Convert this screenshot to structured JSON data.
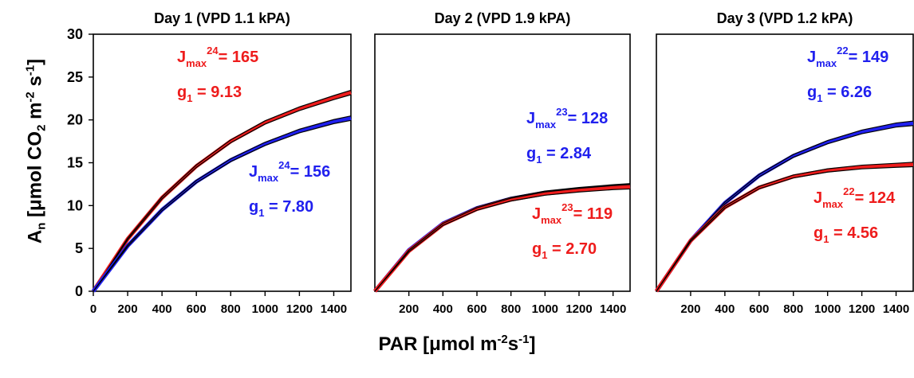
{
  "colors": {
    "red": "#ee1c1c",
    "blue": "#2020ee",
    "black": "#000000"
  },
  "axis_labels": {
    "y": {
      "a": "A",
      "a_sub": "n",
      "b": " [μmol CO",
      "co2_sub": "2",
      "c": " m",
      "m_sup": "-2",
      "d": " s",
      "s_sup": "-1",
      "e": "]"
    },
    "x": {
      "a": "PAR [μmol m",
      "m_sup": "-2",
      "b": "s",
      "s_sup": "-1",
      "c": "]"
    }
  },
  "chart_data": [
    {
      "type": "line",
      "title": "Day 1 (VPD 1.1 kPA)",
      "xlim": [
        0,
        1500
      ],
      "ylim": [
        0,
        30
      ],
      "xticks": [
        "0",
        "200",
        "400",
        "600",
        "800",
        "1000",
        "1200",
        "1400"
      ],
      "yticks": [
        "0",
        "5",
        "10",
        "15",
        "20",
        "25",
        "30"
      ],
      "series": [
        {
          "color": "red",
          "x": [
            0,
            200,
            400,
            600,
            800,
            1000,
            1200,
            1400,
            1500
          ],
          "y": [
            0,
            6.1,
            10.9,
            14.6,
            17.5,
            19.7,
            21.3,
            22.6,
            23.2
          ]
        },
        {
          "color": "blue",
          "x": [
            0,
            200,
            400,
            600,
            800,
            1000,
            1200,
            1400,
            1500
          ],
          "y": [
            0,
            5.3,
            9.5,
            12.8,
            15.3,
            17.2,
            18.7,
            19.8,
            20.2
          ]
        }
      ],
      "annotations": [
        {
          "color": "red",
          "jmax_sup": "24",
          "jmax_value": "= 165",
          "g1_value": "= 9.13"
        },
        {
          "color": "blue",
          "jmax_sup": "24",
          "jmax_value": "= 156",
          "g1_value": "= 7.80"
        }
      ]
    },
    {
      "type": "line",
      "title": "Day 2 (VPD 1.9 kPA)",
      "xlim": [
        0,
        1500
      ],
      "ylim": [
        0,
        30
      ],
      "xticks": [
        "200",
        "400",
        "600",
        "800",
        "1000",
        "1200",
        "1400"
      ],
      "yticks": [],
      "series": [
        {
          "color": "blue",
          "x": [
            0,
            200,
            400,
            600,
            800,
            1000,
            1200,
            1400,
            1500
          ],
          "y": [
            0,
            4.8,
            7.9,
            9.7,
            10.8,
            11.5,
            11.9,
            12.2,
            12.3
          ]
        },
        {
          "color": "red",
          "x": [
            0,
            200,
            400,
            600,
            800,
            1000,
            1200,
            1400,
            1500
          ],
          "y": [
            0,
            4.7,
            7.8,
            9.6,
            10.7,
            11.4,
            11.8,
            12.1,
            12.2
          ]
        }
      ],
      "annotations": [
        {
          "color": "blue",
          "jmax_sup": "23",
          "jmax_value": "= 128",
          "g1_value": "= 2.84"
        },
        {
          "color": "red",
          "jmax_sup": "23",
          "jmax_value": "= 119",
          "g1_value": "= 2.70"
        }
      ]
    },
    {
      "type": "line",
      "title": "Day 3 (VPD 1.2 kPA)",
      "xlim": [
        0,
        1500
      ],
      "ylim": [
        0,
        30
      ],
      "xticks": [
        "200",
        "400",
        "600",
        "800",
        "1000",
        "1200",
        "1400"
      ],
      "yticks": [],
      "series": [
        {
          "color": "blue",
          "x": [
            0,
            200,
            400,
            600,
            800,
            1000,
            1200,
            1400,
            1500
          ],
          "y": [
            0,
            5.9,
            10.3,
            13.5,
            15.8,
            17.4,
            18.6,
            19.4,
            19.6
          ]
        },
        {
          "color": "red",
          "x": [
            0,
            200,
            400,
            600,
            800,
            1000,
            1200,
            1400,
            1500
          ],
          "y": [
            0,
            5.9,
            9.8,
            12.1,
            13.4,
            14.1,
            14.5,
            14.7,
            14.8
          ]
        }
      ],
      "annotations": [
        {
          "color": "blue",
          "jmax_sup": "22",
          "jmax_value": "= 149",
          "g1_value": "= 6.26"
        },
        {
          "color": "red",
          "jmax_sup": "22",
          "jmax_value": "= 124",
          "g1_value": "= 4.56"
        }
      ]
    }
  ],
  "annotation_text": {
    "jmax": "J",
    "jmax_sub": "max",
    "g1": "g",
    "g1_sub": "1"
  }
}
